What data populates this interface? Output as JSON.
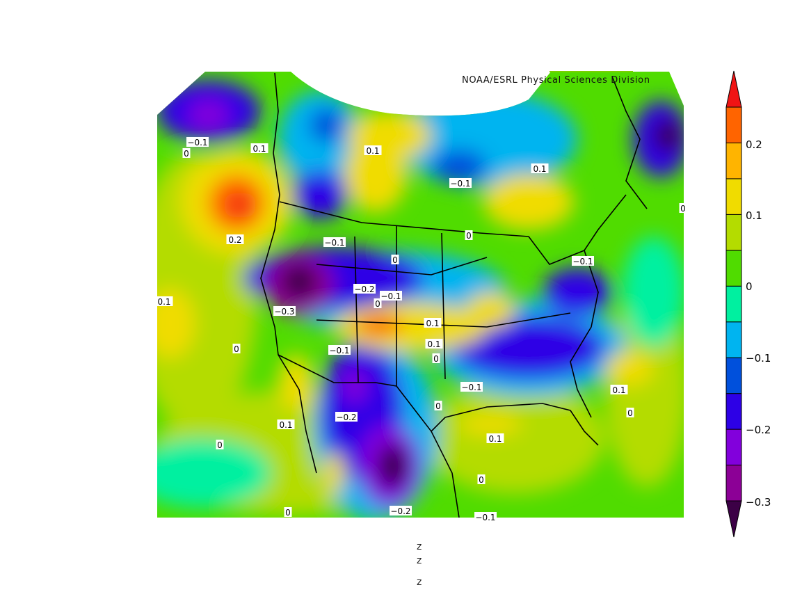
{
  "credit": "NOAA/ESRL Physical Sciences Division",
  "colorbar": {
    "colors": [
      "#3c0046",
      "#8c0096",
      "#8200dc",
      "#2d00e6",
      "#0050dc",
      "#00b4f0",
      "#00f0a0",
      "#50dc00",
      "#b4dc00",
      "#f0dc00",
      "#ffb400",
      "#ff6400",
      "#f01414"
    ],
    "labels": [
      "0.2",
      "0.1",
      "0",
      "−0.1",
      "−0.2",
      "−0.3"
    ]
  },
  "contour_labels": [
    "−0.1",
    "0",
    "0.1",
    "0.1",
    "−0.1",
    "0.1",
    "0.2",
    "−0.1",
    "0",
    "0",
    "−0.1",
    "0.1",
    "−0.2",
    "−0.1",
    "0",
    "−0.3",
    "0.1",
    "0.1",
    "0",
    "0",
    "−0.1",
    "−0.1",
    "0.1",
    "−0.2",
    "0",
    "0.1",
    "0.1",
    "0",
    "0",
    "−0.2",
    "0",
    "−0.1",
    "0",
    "0"
  ],
  "footer_lines": [
    "z",
    "z",
    "z"
  ]
}
